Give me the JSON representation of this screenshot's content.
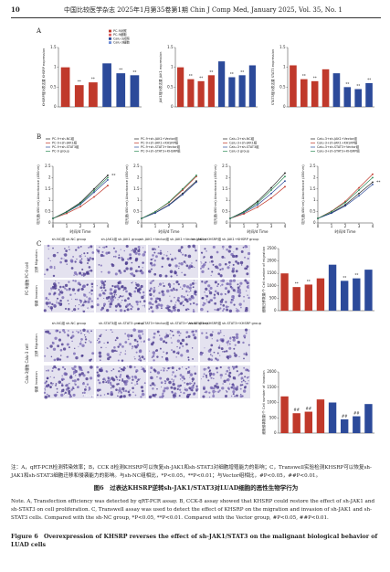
{
  "header": {
    "page": "10",
    "journal": "中国比较医学杂志 2025年1月第35卷第1期 Chin J Comp Med, January 2025, Vol. 35, No. 1"
  },
  "panel_labels": [
    "A",
    "B",
    "C"
  ],
  "images": {
    "top_headers": [
      "sh-NC组 sh-NC group",
      "sh-JAK1组 sh-JAK1 group",
      "sh-JAK1+Vector组 sh-JAK1+Vector group",
      "sh-JAK1+KHSRP组 sh-JAK1+KHSRP group"
    ],
    "bottom_headers": [
      "sh-NC组 sh-NC group",
      "sh-STAT3组 sh-STAT3 group",
      "sh-STAT3+Vector组 sh-STAT3+Vector group",
      "sh-STAT3+KHSRP组 sh-STAT3+KHSRP group"
    ],
    "row_labels": [
      "迁移 Migration",
      "侵袭 Invasion",
      "迁移 Migration",
      "侵袭 Invasion"
    ],
    "cell_labels": [
      "PC-9细胞 PC-9 cell",
      "Calu-3细胞 Calu-3 cell"
    ],
    "scale": "210 μm"
  },
  "chart_data": [
    {
      "type": "bar",
      "ylabel": "KHSRP相对表达量 KHSRP expression",
      "categories": [
        null,
        null,
        null,
        null,
        null,
        null
      ],
      "values": [
        1.0,
        0.55,
        0.62,
        1.1,
        0.85,
        0.8
      ],
      "colors": [
        "#c0392b",
        "#c0392b",
        "#c0392b",
        "#2c4a9a",
        "#2c4a9a",
        "#2c4a9a"
      ],
      "sig": [
        null,
        "**",
        "**",
        null,
        "**",
        "**"
      ],
      "ylim": [
        0,
        1.5
      ],
      "yticks": [
        0,
        0.5,
        1,
        1.5
      ],
      "legend": [
        "PC-9对照",
        "PC-9细胞",
        "Calu-3对照",
        "Calu-3细胞"
      ],
      "legend_colors": [
        "#c0392b",
        "#e06666",
        "#2c4a9a",
        "#6d8cd6"
      ]
    },
    {
      "type": "bar",
      "ylabel": "JAK1相对表达量 JAK1 expression",
      "categories": [
        null,
        null,
        null,
        null,
        null,
        null,
        null,
        null
      ],
      "values": [
        1.0,
        0.7,
        0.65,
        0.8,
        1.15,
        0.75,
        0.8,
        1.05
      ],
      "colors": [
        "#c0392b",
        "#c0392b",
        "#c0392b",
        "#c0392b",
        "#2c4a9a",
        "#2c4a9a",
        "#2c4a9a",
        "#2c4a9a"
      ],
      "sig": [
        null,
        "**",
        "**",
        "**",
        null,
        "**",
        "**",
        null
      ],
      "ylim": [
        0,
        1.5
      ],
      "yticks": [
        0,
        0.5,
        1,
        1.5
      ]
    },
    {
      "type": "bar",
      "ylabel": "STAT3相对表达量 STAT3 expression",
      "categories": [
        null,
        null,
        null,
        null,
        null,
        null,
        null,
        null
      ],
      "values": [
        1.05,
        0.7,
        0.65,
        0.95,
        0.85,
        0.5,
        0.45,
        0.6
      ],
      "colors": [
        "#c0392b",
        "#c0392b",
        "#c0392b",
        "#c0392b",
        "#2c4a9a",
        "#2c4a9a",
        "#2c4a9a",
        "#2c4a9a"
      ],
      "sig": [
        null,
        "**",
        "**",
        null,
        null,
        "**",
        "**",
        "**"
      ],
      "ylim": [
        0,
        1.5
      ],
      "yticks": [
        0,
        0.5,
        1,
        1.5
      ]
    },
    {
      "type": "line",
      "xlabel": "时间/d Time",
      "ylabel": "吸光度(450nm) Absorbance (450nm)",
      "x": [
        0,
        1,
        2,
        3,
        4
      ],
      "xlim": [
        0,
        4
      ],
      "xticks": [
        0,
        1,
        2,
        3,
        4
      ],
      "ylim": [
        0,
        2.5
      ],
      "yticks": [
        0,
        0.5,
        1,
        1.5,
        2,
        2.5
      ],
      "series": [
        {
          "name": "PC-9+sh-NC组",
          "color": "#222222",
          "values": [
            0.2,
            0.5,
            0.9,
            1.5,
            2.1
          ]
        },
        {
          "name": "PC-9+sh-JAK1组",
          "color": "#c0392b",
          "values": [
            0.2,
            0.42,
            0.72,
            1.15,
            1.65
          ]
        },
        {
          "name": "PC-9+sh-STAT3组",
          "color": "#2c4a9a",
          "values": [
            0.2,
            0.47,
            0.82,
            1.35,
            1.9
          ]
        },
        {
          "name": "PC-9 group",
          "color": "#2e8b57",
          "values": [
            0.2,
            0.48,
            0.86,
            1.42,
            2.0
          ]
        }
      ],
      "sig": "**"
    },
    {
      "type": "line",
      "xlabel": "时间/d Time",
      "ylabel": "吸光度(450nm) Absorbance (450nm)",
      "x": [
        0,
        1,
        2,
        3,
        4
      ],
      "xlim": [
        0,
        4
      ],
      "xticks": [
        0,
        1,
        2,
        3,
        4
      ],
      "ylim": [
        0,
        2.5
      ],
      "yticks": [
        0,
        0.5,
        1,
        1.5,
        2,
        2.5
      ],
      "series": [
        {
          "name": "PC-9+sh-JAK1+Vector组",
          "color": "#222222",
          "values": [
            0.2,
            0.45,
            0.8,
            1.3,
            1.85
          ]
        },
        {
          "name": "PC-9+sh-JAK1+KHSRP组",
          "color": "#c0392b",
          "values": [
            0.2,
            0.5,
            0.9,
            1.45,
            2.05
          ]
        },
        {
          "name": "PC-9+sh-STAT3+Vector组",
          "color": "#2c4a9a",
          "values": [
            0.2,
            0.44,
            0.78,
            1.25,
            1.8
          ]
        },
        {
          "name": "PC-9+sh-STAT3+KHSRP组",
          "color": "#2e8b57",
          "values": [
            0.2,
            0.5,
            0.92,
            1.5,
            2.1
          ]
        }
      ]
    },
    {
      "type": "line",
      "xlabel": "时间/d Time",
      "ylabel": "吸光度(450nm) Absorbance (450nm)",
      "x": [
        0,
        1,
        2,
        3,
        4
      ],
      "xlim": [
        0,
        4
      ],
      "xticks": [
        0,
        1,
        2,
        3,
        4
      ],
      "ylim": [
        0,
        2.5
      ],
      "yticks": [
        0,
        0.5,
        1,
        1.5,
        2,
        2.5
      ],
      "series": [
        {
          "name": "Calu-3+sh-NC组",
          "color": "#222222",
          "values": [
            0.2,
            0.5,
            0.95,
            1.55,
            2.2
          ]
        },
        {
          "name": "Calu-3+sh-JAK1组",
          "color": "#c0392b",
          "values": [
            0.2,
            0.4,
            0.7,
            1.1,
            1.6
          ]
        },
        {
          "name": "Calu-3+sh-STAT3组",
          "color": "#2c4a9a",
          "values": [
            0.2,
            0.45,
            0.8,
            1.3,
            1.85
          ]
        },
        {
          "name": "Calu-3 group",
          "color": "#2e8b57",
          "values": [
            0.2,
            0.48,
            0.88,
            1.45,
            2.05
          ]
        }
      ]
    },
    {
      "type": "line",
      "xlabel": "时间/d Time",
      "ylabel": "吸光度(450nm) Absorbance (450nm)",
      "x": [
        0,
        1,
        2,
        3,
        4
      ],
      "xlim": [
        0,
        4
      ],
      "xticks": [
        0,
        1,
        2,
        3,
        4
      ],
      "ylim": [
        0,
        2.5
      ],
      "yticks": [
        0,
        0.5,
        1,
        1.5,
        2,
        2.5
      ],
      "series": [
        {
          "name": "Calu-3+sh-JAK1+Vector组",
          "color": "#222222",
          "values": [
            0.2,
            0.45,
            0.8,
            1.3,
            1.8
          ]
        },
        {
          "name": "Calu-3+sh-JAK1+KHSRP组",
          "color": "#c0392b",
          "values": [
            0.2,
            0.52,
            0.95,
            1.55,
            2.15
          ]
        },
        {
          "name": "Calu-3+sh-STAT3+Vector组",
          "color": "#2c4a9a",
          "values": [
            0.2,
            0.43,
            0.75,
            1.2,
            1.7
          ]
        },
        {
          "name": "Calu-3+sh-STAT3+KHSRP组",
          "color": "#2e8b57",
          "values": [
            0.2,
            0.5,
            0.9,
            1.45,
            2.0
          ]
        }
      ],
      "sig": "**"
    },
    {
      "type": "bar",
      "ylabel": "细胞迁移数量/个 Cell number of migration",
      "categories": [
        null,
        null,
        null,
        null,
        null,
        null,
        null,
        null
      ],
      "values": [
        1500,
        950,
        1050,
        1300,
        1850,
        1200,
        1300,
        1650
      ],
      "colors": [
        "#c0392b",
        "#c0392b",
        "#c0392b",
        "#c0392b",
        "#2c4a9a",
        "#2c4a9a",
        "#2c4a9a",
        "#2c4a9a"
      ],
      "sig": [
        null,
        "**",
        "**",
        null,
        null,
        "**",
        "**",
        null
      ],
      "ylim": [
        0,
        2500
      ],
      "yticks": [
        0,
        500,
        1000,
        1500,
        2000,
        2500
      ]
    },
    {
      "type": "bar",
      "ylabel": "细胞侵袭数量/个 Cell number of invasion",
      "categories": [
        null,
        null,
        null,
        null,
        null,
        null,
        null,
        null
      ],
      "values": [
        1200,
        650,
        700,
        1100,
        1000,
        450,
        550,
        950
      ],
      "colors": [
        "#c0392b",
        "#c0392b",
        "#c0392b",
        "#c0392b",
        "#2c4a9a",
        "#2c4a9a",
        "#2c4a9a",
        "#2c4a9a"
      ],
      "sig": [
        null,
        "##",
        "##",
        null,
        null,
        "##",
        "##",
        null
      ],
      "ylim": [
        0,
        2000
      ],
      "yticks": [
        0,
        500,
        1000,
        1500,
        2000
      ]
    }
  ],
  "caption": {
    "note_cn": "注：A，qRT-PCR检测转染效率；B，CCK 8检测KHSRP可以恢复sh-JAK1和sh-STAT3对细胞增殖能力的影响；C，Transwell实验检测KHSRP可以恢复sh-JAK1和sh-STAT3细胞迁移和侵袭能力的影响。与sh-NC组相比，*P<0.05，**P<0.01；与Vector组相比，#P<0.05，##P<0.01。",
    "title_cn": "图6　过表达KHSRP逆转sh-JAK1/STAT3对LUAD细胞的恶性生物学行为",
    "note_en": "Note. A, Transfection efficiency was detected by qRT-PCR assay. B, CCK-8 assay showed that KHSRP could restore the effect of sh-JAK1 and sh-STAT3 on cell proliferation. C, Transwell assay was used to detect the effect of KHSRP on the migration and invasion of sh-JAK1 and sh-STAT3 cells. Compared with the sh-NC group, *P<0.05, **P<0.01. Compared with the Vector group, #P<0.05, ##P<0.01.",
    "title_en": "Figure 6　Overexpression of KHSRP reverses the effect of sh-JAK1/STAT3 on the malignant biological behavior of LUAD cells"
  }
}
